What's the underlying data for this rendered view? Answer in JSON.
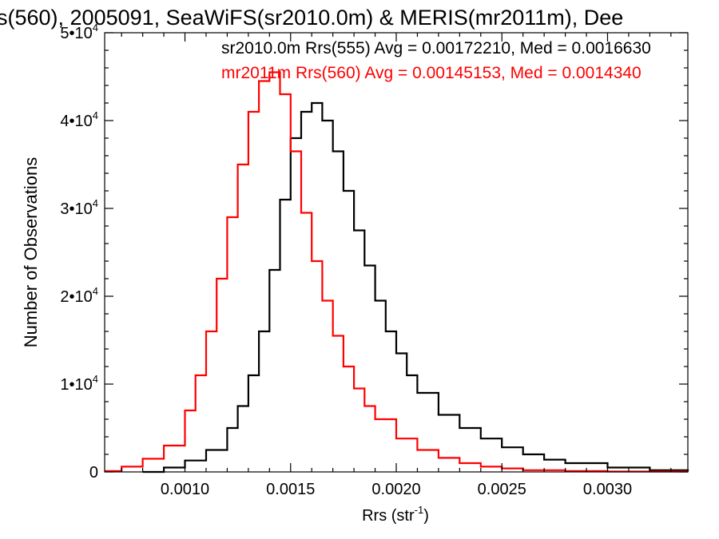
{
  "chart_data": {
    "type": "line",
    "title": "s(560), 2005091, SeaWiFS(sr2010.0m) & MERIS(mr2011m), Dee",
    "xlabel": "Rrs (str",
    "xlabel_sup": "-1",
    "xlabel_close": ")",
    "ylabel": "Number of Observations",
    "xlim": [
      0.00062,
      0.00338
    ],
    "ylim": [
      0,
      50000
    ],
    "x_ticks": [
      0.001,
      0.0015,
      0.002,
      0.0025,
      0.003
    ],
    "x_tick_labels": [
      "0.0010",
      "0.0015",
      "0.0020",
      "0.0025",
      "0.0030"
    ],
    "y_ticks": [
      0,
      10000,
      20000,
      30000,
      40000,
      50000
    ],
    "y_tick_labels": [
      {
        "base": "0",
        "exp": ""
      },
      {
        "base": "1•10",
        "exp": "4"
      },
      {
        "base": "2•10",
        "exp": "4"
      },
      {
        "base": "3•10",
        "exp": "4"
      },
      {
        "base": "4•10",
        "exp": "4"
      },
      {
        "base": "5•10",
        "exp": "4"
      }
    ],
    "grid": false,
    "legend_position": "top-right",
    "series": [
      {
        "name": "sr2010.0m Rrs(555) Avg = 0.00172210, Med = 0.0016630",
        "color": "#000000",
        "step": true,
        "x": [
          0.0008,
          0.0009,
          0.001,
          0.0011,
          0.0012,
          0.00125,
          0.0013,
          0.00135,
          0.0014,
          0.00145,
          0.0015,
          0.00155,
          0.0016,
          0.00165,
          0.0017,
          0.00175,
          0.0018,
          0.00185,
          0.0019,
          0.00195,
          0.002,
          0.00205,
          0.0021,
          0.0022,
          0.0023,
          0.0024,
          0.0025,
          0.0026,
          0.0027,
          0.0028,
          0.003,
          0.0032,
          0.00338
        ],
        "y": [
          0,
          500,
          1300,
          2500,
          5000,
          7500,
          11000,
          16000,
          23000,
          31000,
          38000,
          41000,
          42000,
          40000,
          36500,
          32000,
          27500,
          23500,
          19500,
          16000,
          13500,
          11000,
          9000,
          6500,
          5000,
          3800,
          2800,
          2000,
          1400,
          1000,
          500,
          200,
          100
        ]
      },
      {
        "name": "mr2011m Rrs(560) Avg = 0.00145153, Med = 0.0014340",
        "color": "#ff0000",
        "step": true,
        "x": [
          0.00062,
          0.0007,
          0.0008,
          0.0009,
          0.001,
          0.00105,
          0.0011,
          0.00115,
          0.0012,
          0.00125,
          0.0013,
          0.00135,
          0.0014,
          0.00145,
          0.0015,
          0.00155,
          0.0016,
          0.00165,
          0.0017,
          0.00175,
          0.0018,
          0.00185,
          0.0019,
          0.002,
          0.0021,
          0.0022,
          0.0023,
          0.0024,
          0.0025,
          0.0026,
          0.0028,
          0.003,
          0.00338
        ],
        "y": [
          100,
          600,
          1500,
          3000,
          7000,
          11000,
          16000,
          22000,
          29000,
          35000,
          41000,
          44500,
          45500,
          43000,
          36500,
          29500,
          24000,
          19500,
          15500,
          12000,
          9500,
          7500,
          6000,
          3800,
          2500,
          1600,
          1000,
          600,
          400,
          200,
          100,
          50,
          20
        ]
      }
    ]
  }
}
